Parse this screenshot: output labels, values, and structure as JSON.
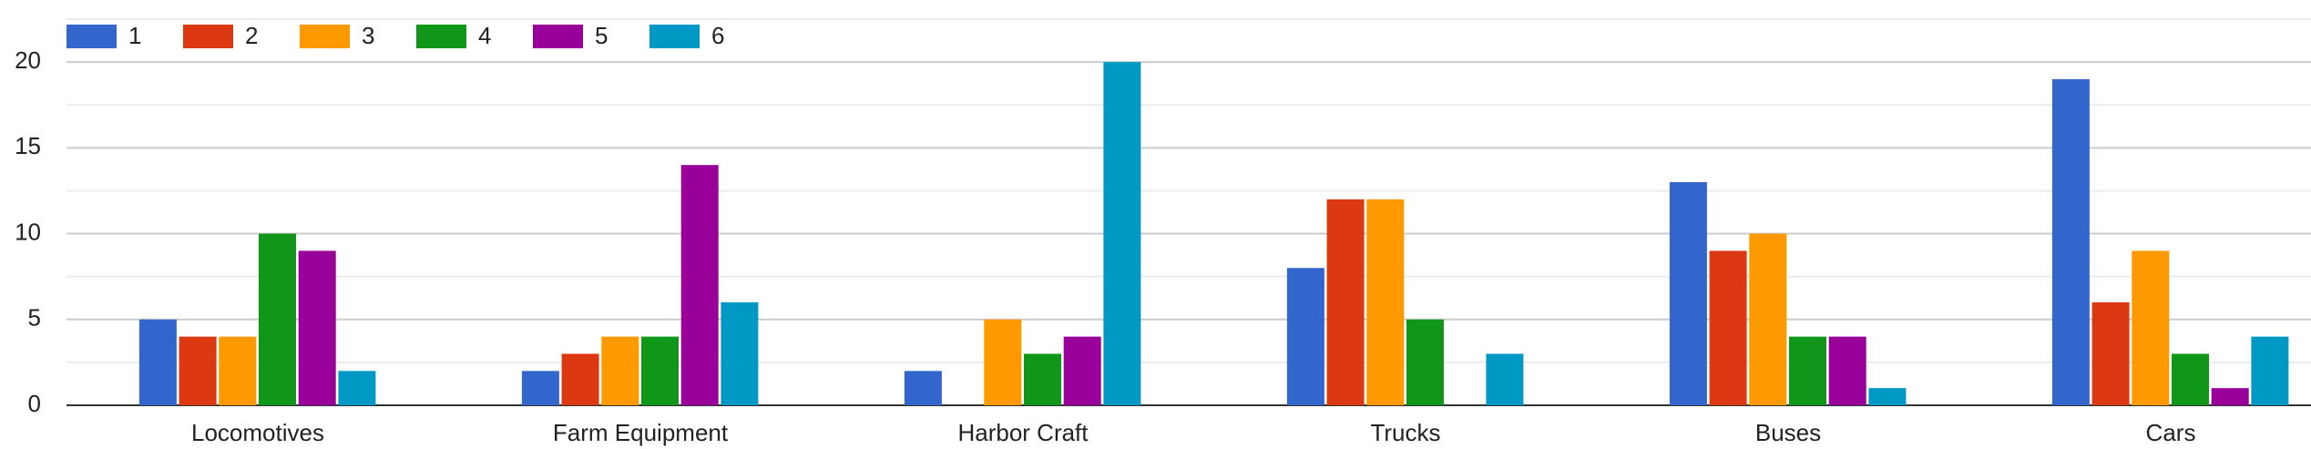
{
  "chart_data": {
    "type": "bar",
    "categories": [
      "Locomotives",
      "Farm Equipment",
      "Harbor Craft",
      "Trucks",
      "Buses",
      "Cars"
    ],
    "series": [
      {
        "name": "1",
        "color": "#3366cc",
        "values": [
          5,
          2,
          2,
          8,
          13,
          19
        ]
      },
      {
        "name": "2",
        "color": "#dc3912",
        "values": [
          4,
          3,
          0,
          12,
          9,
          6
        ]
      },
      {
        "name": "3",
        "color": "#ff9900",
        "values": [
          4,
          4,
          5,
          12,
          10,
          9
        ]
      },
      {
        "name": "4",
        "color": "#109618",
        "values": [
          10,
          4,
          3,
          5,
          4,
          3
        ]
      },
      {
        "name": "5",
        "color": "#990099",
        "values": [
          9,
          14,
          4,
          0,
          4,
          1
        ]
      },
      {
        "name": "6",
        "color": "#0099c6",
        "values": [
          2,
          6,
          20,
          3,
          1,
          4
        ]
      }
    ],
    "ylim": [
      0,
      22.5
    ],
    "yticks": [
      0,
      5,
      10,
      15,
      20
    ],
    "grid": true,
    "legend": "top"
  }
}
